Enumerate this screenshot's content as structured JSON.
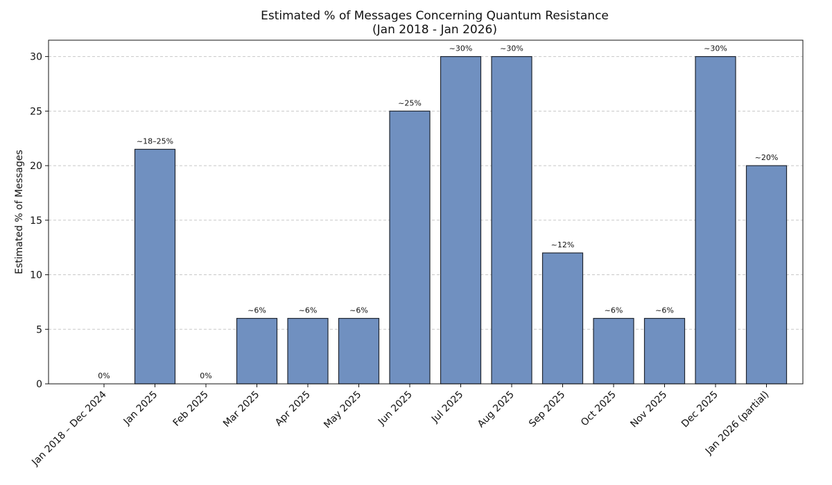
{
  "chart_data": {
    "type": "bar",
    "title": "Estimated % of Messages Concerning Quantum Resistance",
    "subtitle": "(Jan 2018 - Jan 2026)",
    "xlabel": "",
    "ylabel": "Estimated % of Messages",
    "ylim": [
      0,
      31.5
    ],
    "yticks": [
      0,
      5,
      10,
      15,
      20,
      25,
      30
    ],
    "grid": "y-dashed",
    "bar_color": "#7090C0",
    "categories": [
      "Jan 2018 – Dec 2024",
      "Jan 2025",
      "Feb 2025",
      "Mar 2025",
      "Apr 2025",
      "May 2025",
      "Jun 2025",
      "Jul 2025",
      "Aug 2025",
      "Sep 2025",
      "Oct 2025",
      "Nov 2025",
      "Dec 2025",
      "Jan 2026 (partial)"
    ],
    "values": [
      0,
      21.5,
      0,
      6,
      6,
      6,
      25,
      30,
      30,
      12,
      6,
      6,
      30,
      20
    ],
    "data_labels": [
      "0%",
      "~18–25%",
      "0%",
      "~6%",
      "~6%",
      "~6%",
      "~25%",
      "~30%",
      "~30%",
      "~12%",
      "~6%",
      "~6%",
      "~30%",
      "~20%"
    ]
  }
}
